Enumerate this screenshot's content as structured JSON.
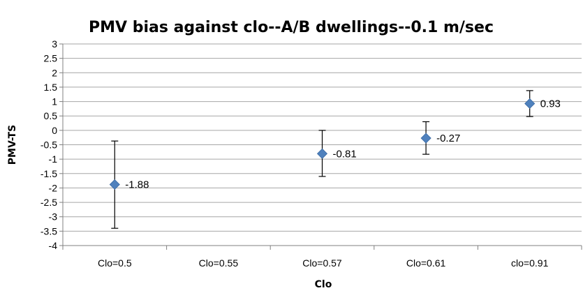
{
  "chart_data": {
    "type": "scatter",
    "title": "PMV bias against clo--A/B dwellings--0.1 m/sec",
    "xlabel": "Clo",
    "ylabel": "PMV-TS",
    "categories": [
      "Clo=0.5",
      "Clo=0.55",
      "Clo=0.57",
      "Clo=0.61",
      "clo=0.91"
    ],
    "ylim": [
      -4,
      3
    ],
    "ystep": 0.5,
    "ytick_labels": [
      "3",
      "2.5",
      "2",
      "1.5",
      "1",
      "0.5",
      "0",
      "-0.5",
      "-1",
      "-1.5",
      "-2",
      "-2.5",
      "-3",
      "-3.5",
      "-4"
    ],
    "grid": true,
    "legend": "none",
    "points": [
      {
        "category": "Clo=0.5",
        "y": -1.88,
        "label": "-1.88",
        "err_low": -3.4,
        "err_high": -0.37
      },
      {
        "category": "Clo=0.57",
        "y": -0.81,
        "label": "-0.81",
        "err_low": -1.6,
        "err_high": 0.0
      },
      {
        "category": "Clo=0.61",
        "y": -0.27,
        "label": "-0.27",
        "err_low": -0.83,
        "err_high": 0.3
      },
      {
        "category": "clo=0.91",
        "y": 0.93,
        "label": "0.93",
        "err_low": 0.48,
        "err_high": 1.38
      }
    ],
    "colors": {
      "marker": "#4F81BD",
      "gridline": "#a6a6a6",
      "axis": "#808080",
      "errorbar": "#000000"
    }
  }
}
